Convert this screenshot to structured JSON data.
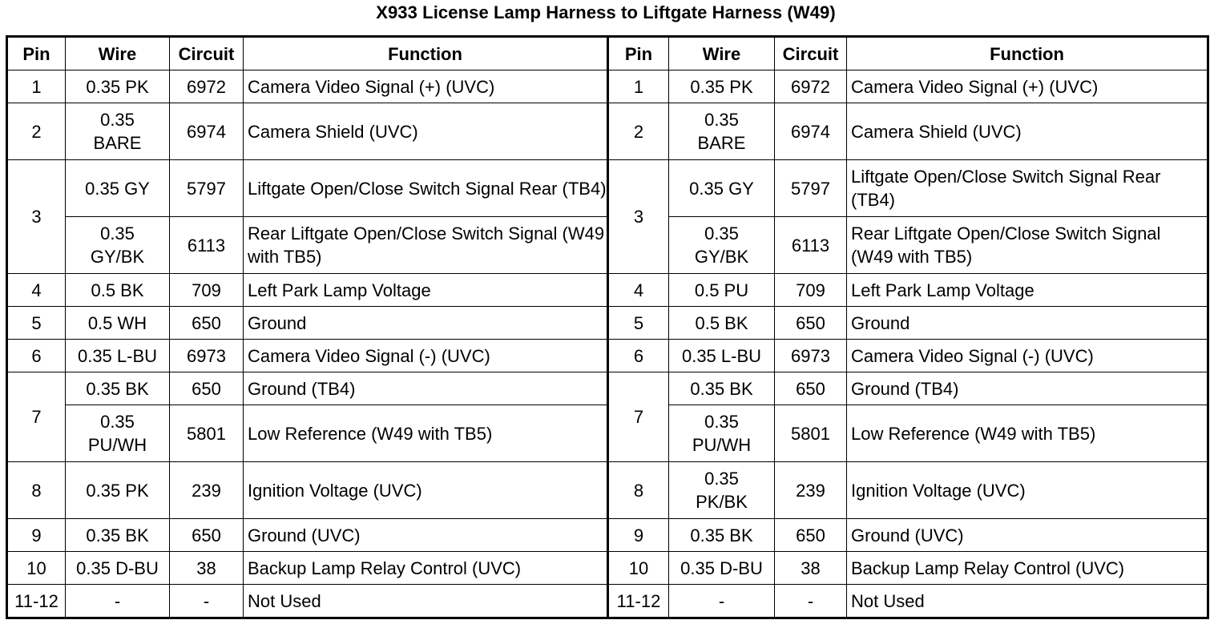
{
  "title": "X933 License Lamp Harness to Liftgate Harness (W49)",
  "headers": [
    "Pin",
    "Wire",
    "Circuit",
    "Function"
  ],
  "left": {
    "r1": {
      "pin": "1",
      "wire": "0.35 PK",
      "circuit": "6972",
      "function": "Camera Video Signal (+) (UVC)"
    },
    "r2": {
      "pin": "2",
      "wire": "0.35 BARE",
      "circuit": "6974",
      "function": "Camera Shield (UVC)"
    },
    "r3a": {
      "pin": "3",
      "wire": "0.35 GY",
      "circuit": "5797",
      "function": "Liftgate Open/Close Switch Signal Rear (TB4)"
    },
    "r3b": {
      "wire": "0.35 GY/BK",
      "circuit": "6113",
      "function": "Rear Liftgate Open/Close Switch Signal (W49 with TB5)"
    },
    "r4": {
      "pin": "4",
      "wire": "0.5 BK",
      "circuit": "709",
      "function": "Left Park Lamp Voltage"
    },
    "r5": {
      "pin": "5",
      "wire": "0.5 WH",
      "circuit": "650",
      "function": "Ground"
    },
    "r6": {
      "pin": "6",
      "wire": "0.35 L-BU",
      "circuit": "6973",
      "function": "Camera Video Signal (-) (UVC)"
    },
    "r7a": {
      "pin": "7",
      "wire": "0.35 BK",
      "circuit": "650",
      "function": "Ground (TB4)"
    },
    "r7b": {
      "wire": "0.35 PU/WH",
      "circuit": "5801",
      "function": "Low Reference (W49 with TB5)"
    },
    "r8": {
      "pin": "8",
      "wire": "0.35 PK",
      "circuit": "239",
      "function": "Ignition Voltage (UVC)"
    },
    "r9": {
      "pin": "9",
      "wire": "0.35 BK",
      "circuit": "650",
      "function": "Ground (UVC)"
    },
    "r10": {
      "pin": "10",
      "wire": "0.35 D-BU",
      "circuit": "38",
      "function": "Backup Lamp Relay Control (UVC)"
    },
    "r11": {
      "pin": "11-12",
      "wire": "-",
      "circuit": "-",
      "function": "Not Used"
    }
  },
  "right": {
    "r1": {
      "pin": "1",
      "wire": "0.35 PK",
      "circuit": "6972",
      "function": "Camera Video Signal (+) (UVC)"
    },
    "r2": {
      "pin": "2",
      "wire": "0.35 BARE",
      "circuit": "6974",
      "function": "Camera Shield (UVC)"
    },
    "r3a": {
      "pin": "3",
      "wire": "0.35 GY",
      "circuit": "5797",
      "function": "Liftgate Open/Close Switch Signal Rear (TB4)"
    },
    "r3b": {
      "wire": "0.35 GY/BK",
      "circuit": "6113",
      "function": "Rear Liftgate Open/Close Switch Signal (W49 with TB5)"
    },
    "r4": {
      "pin": "4",
      "wire": "0.5 PU",
      "circuit": "709",
      "function": "Left Park Lamp Voltage"
    },
    "r5": {
      "pin": "5",
      "wire": "0.5 BK",
      "circuit": "650",
      "function": "Ground"
    },
    "r6": {
      "pin": "6",
      "wire": "0.35 L-BU",
      "circuit": "6973",
      "function": "Camera Video Signal (-) (UVC)"
    },
    "r7a": {
      "pin": "7",
      "wire": "0.35 BK",
      "circuit": "650",
      "function": "Ground (TB4)"
    },
    "r7b": {
      "wire": "0.35 PU/WH",
      "circuit": "5801",
      "function": "Low Reference (W49 with TB5)"
    },
    "r8": {
      "pin": "8",
      "wire": "0.35 PK/BK",
      "circuit": "239",
      "function": "Ignition Voltage (UVC)"
    },
    "r9": {
      "pin": "9",
      "wire": "0.35 BK",
      "circuit": "650",
      "function": "Ground (UVC)"
    },
    "r10": {
      "pin": "10",
      "wire": "0.35 D-BU",
      "circuit": "38",
      "function": "Backup Lamp Relay Control (UVC)"
    },
    "r11": {
      "pin": "11-12",
      "wire": "-",
      "circuit": "-",
      "function": "Not Used"
    }
  }
}
